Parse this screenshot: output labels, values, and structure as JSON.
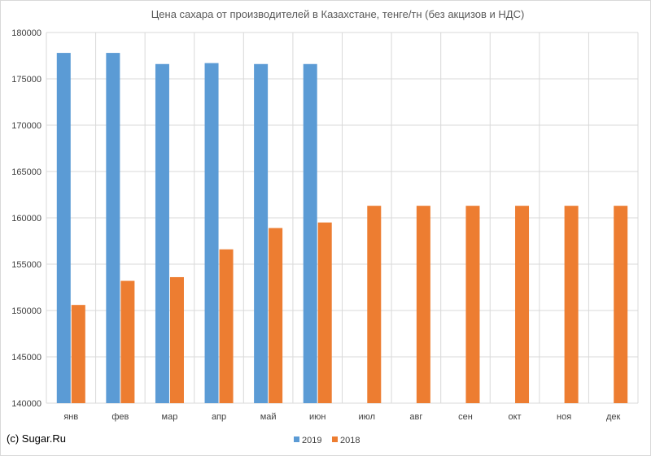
{
  "credit": "(c) Sugar.Ru",
  "chart_data": {
    "type": "bar",
    "title": "Цена сахара от производителей в Казахстане, тенге/тн (без акцизов и НДС)",
    "xlabel": "",
    "ylabel": "",
    "categories": [
      "янв",
      "фев",
      "мар",
      "апр",
      "май",
      "июн",
      "июл",
      "авг",
      "сен",
      "окт",
      "ноя",
      "дек"
    ],
    "series": [
      {
        "name": "2019",
        "color": "#5b9bd5",
        "values": [
          177800,
          177800,
          176600,
          176700,
          176600,
          176600,
          null,
          null,
          null,
          null,
          null,
          null
        ]
      },
      {
        "name": "2018",
        "color": "#ed7d31",
        "values": [
          150600,
          153200,
          153600,
          156600,
          158900,
          159500,
          161300,
          161300,
          161300,
          161300,
          161300,
          161300
        ]
      }
    ],
    "ylim": [
      140000,
      180000
    ],
    "yticks": [
      140000,
      145000,
      150000,
      155000,
      160000,
      165000,
      170000,
      175000,
      180000
    ],
    "grid": true,
    "legend_position": "bottom"
  }
}
